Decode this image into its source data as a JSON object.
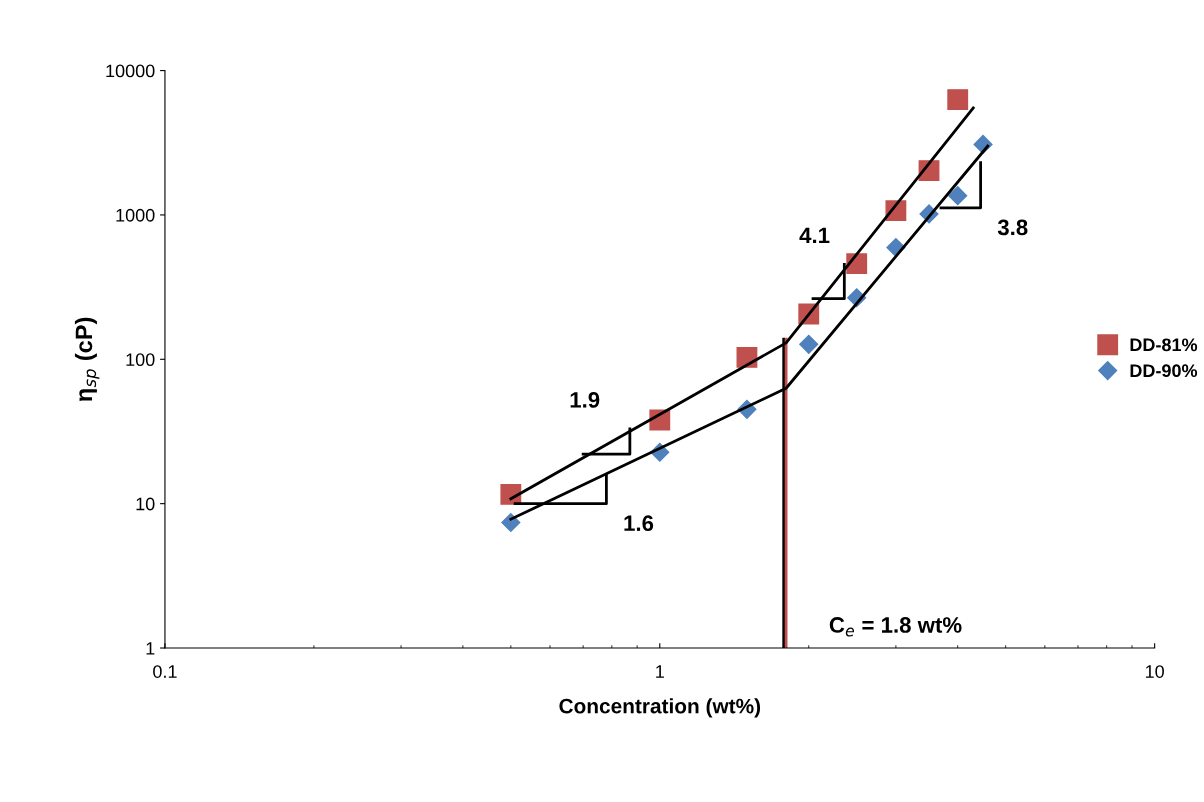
{
  "chart_data": {
    "type": "scatter",
    "xlabel": "Concentration (wt%)",
    "ylabel": "η$_{sp}$ (cP)",
    "log": "xy",
    "xlim": [
      0.1,
      10
    ],
    "ylim": [
      1,
      10000
    ],
    "xticks": [
      0.1,
      1,
      10
    ],
    "yticks": [
      1,
      10,
      100,
      1000,
      10000
    ],
    "grid": false,
    "legend": "right",
    "series": [
      {
        "name": "DD-81%",
        "color": "#c0504d",
        "marker": "square",
        "x": [
          0.5,
          1,
          1.5,
          2,
          2.5,
          3,
          3.5,
          4
        ],
        "values": [
          11.6,
          38,
          103,
          206,
          460,
          1070,
          2030,
          6300
        ]
      },
      {
        "name": "DD-90%",
        "color": "#4f81bd",
        "marker": "diamond",
        "x": [
          0.5,
          1,
          1.5,
          2,
          2.5,
          3,
          3.5,
          4,
          4.5
        ],
        "values": [
          7.4,
          22.7,
          45,
          127,
          267,
          595,
          1016,
          1360,
          3080
        ]
      },
      {
        "type": "line",
        "color": "#000000",
        "marker": "none",
        "x": [
          0.5,
          1.8,
          4.3
        ],
        "values": [
          10.8,
          130,
          5500
        ]
      },
      {
        "type": "line",
        "color": "#000000",
        "marker": "none",
        "x": [
          0.5,
          1.8,
          4.6
        ],
        "values": [
          7.8,
          63,
          3000
        ]
      },
      {
        "type": "line",
        "color": "#000000",
        "marker": "none",
        "x": [
          0.7,
          0.87,
          0.87
        ],
        "values": [
          22,
          22,
          33
        ]
      },
      {
        "type": "line",
        "color": "#000000",
        "marker": "none",
        "x": [
          0.51,
          0.78,
          0.78
        ],
        "values": [
          10,
          10,
          15.7
        ]
      },
      {
        "type": "line",
        "color": "#000000",
        "marker": "none",
        "x": [
          2.04,
          2.36,
          2.36
        ],
        "values": [
          263,
          263,
          455
        ]
      },
      {
        "type": "line",
        "color": "#000000",
        "marker": "none",
        "x": [
          3.7,
          4.45,
          4.45
        ],
        "values": [
          1120,
          1120,
          2300
        ]
      }
    ],
    "ref_lines": [
      {
        "axis": "x",
        "value": 1.78,
        "color": "#000000"
      },
      {
        "axis": "x",
        "value": 1.8,
        "color": "#c0504d",
        "label": "C$_{e}$ = 1.8 wt%"
      }
    ],
    "annotations": [
      "1.9",
      "1.6",
      "4.1",
      "3.8"
    ]
  }
}
